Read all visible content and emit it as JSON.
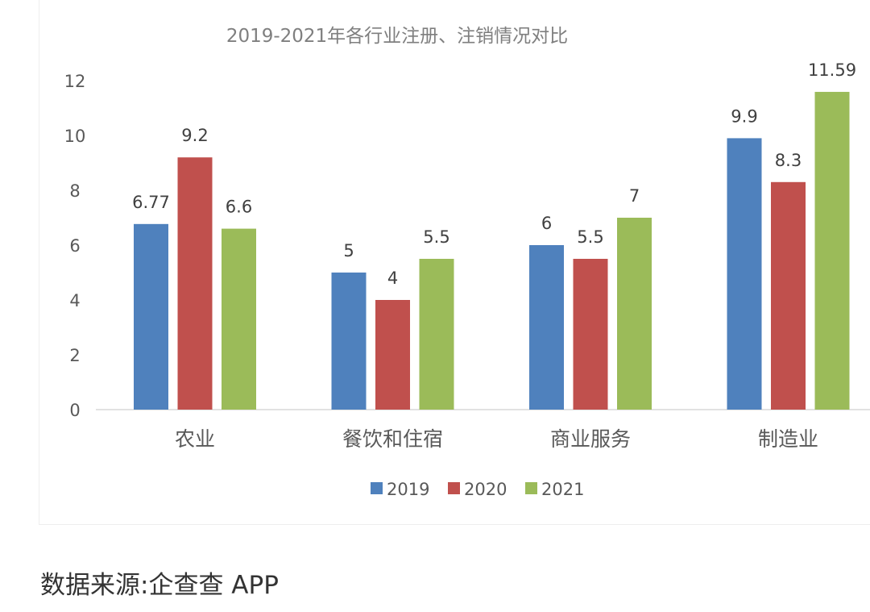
{
  "chart_data": {
    "type": "bar",
    "title": "2019-2021年各行业注册、注销情况对比",
    "categories": [
      "农业",
      "餐饮和住宿",
      "商业服务",
      "制造业"
    ],
    "series": [
      {
        "name": "2019",
        "color": "#4f81bd",
        "values": [
          6.77,
          5,
          6,
          9.9
        ],
        "labels": [
          "6.77",
          "5",
          "6",
          "9.9"
        ]
      },
      {
        "name": "2020",
        "color": "#c0504d",
        "values": [
          9.2,
          4,
          5.5,
          8.3
        ],
        "labels": [
          "9.2",
          "4",
          "5.5",
          "8.3"
        ]
      },
      {
        "name": "2021",
        "color": "#9bbb59",
        "values": [
          6.6,
          5.5,
          7,
          11.59
        ],
        "labels": [
          "6.6",
          "5.5",
          "7",
          "11.59"
        ]
      }
    ],
    "ylim": [
      0,
      12
    ],
    "yticks": [
      "0",
      "2",
      "4",
      "6",
      "8",
      "10",
      "12"
    ],
    "grid": false,
    "legend_position": "bottom"
  },
  "caption": "数据来源:企查查 APP"
}
